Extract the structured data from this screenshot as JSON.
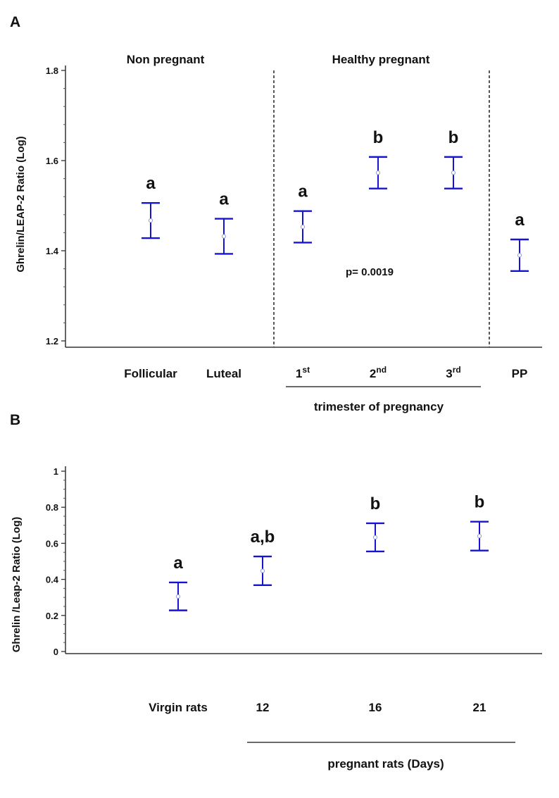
{
  "chart_data": [
    {
      "type": "scatter",
      "panel_label": "A",
      "ylabel": "Ghrelin/LEAP-2 Ratio (Log)",
      "ylim": [
        1.2,
        1.8
      ],
      "yticks": [
        "1.2",
        "1.4",
        "1.6",
        "1.8"
      ],
      "groups": [
        {
          "label": "Non pregnant"
        },
        {
          "label": "Healthy pregnant"
        }
      ],
      "categories": [
        {
          "label": "Follicular",
          "sup": ""
        },
        {
          "label": "Luteal",
          "sup": ""
        },
        {
          "label": "1",
          "sup": "st"
        },
        {
          "label": "2",
          "sup": "nd"
        },
        {
          "label": "3",
          "sup": "rd"
        },
        {
          "label": "PP",
          "sup": ""
        }
      ],
      "series": [
        {
          "mean": [
            1.467,
            1.432,
            1.453,
            1.573,
            1.573,
            1.39
          ],
          "lower": [
            1.428,
            1.393,
            1.418,
            1.538,
            1.538,
            1.355
          ],
          "upper": [
            1.506,
            1.471,
            1.488,
            1.608,
            1.608,
            1.425
          ],
          "letters": [
            "a",
            "a",
            "a",
            "b",
            "b",
            "a"
          ]
        }
      ],
      "annotations": [
        "p= 0.0019"
      ],
      "bracket_label": "trimester of pregnancy",
      "grid": false,
      "color": "#1414d2"
    },
    {
      "type": "scatter",
      "panel_label": "B",
      "ylabel": "Ghrelin /Leap-2 Ratio (Log)",
      "ylim": [
        0,
        1
      ],
      "yticks": [
        "0",
        "0.2",
        "0.4",
        "0.6",
        "0.8",
        "1"
      ],
      "categories": [
        {
          "label": "Virgin rats",
          "sup": ""
        },
        {
          "label": "12",
          "sup": ""
        },
        {
          "label": "16",
          "sup": ""
        },
        {
          "label": "21",
          "sup": ""
        }
      ],
      "series": [
        {
          "mean": [
            0.305,
            0.447,
            0.633,
            0.64
          ],
          "lower": [
            0.228,
            0.368,
            0.555,
            0.56
          ],
          "upper": [
            0.383,
            0.527,
            0.711,
            0.72
          ],
          "letters": [
            "a",
            "a,b",
            "b",
            "b"
          ]
        }
      ],
      "bracket_label": "pregnant rats (Days)",
      "grid": false,
      "color": "#1414d2"
    }
  ]
}
